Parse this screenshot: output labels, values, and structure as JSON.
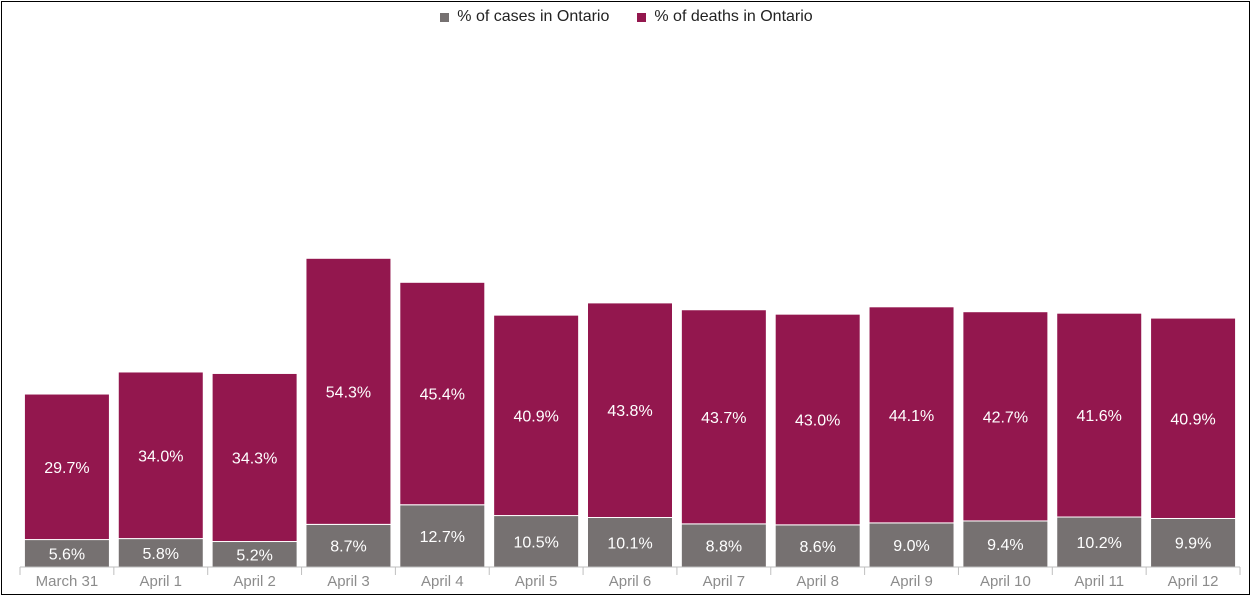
{
  "chart_data": {
    "type": "bar",
    "stacked": true,
    "categories": [
      "March 31",
      "April 1",
      "April 2",
      "April 3",
      "April 4",
      "April 5",
      "April 6",
      "April 7",
      "April 8",
      "April 9",
      "April 10",
      "April 11",
      "April 12"
    ],
    "series": [
      {
        "name": "% of cases in Ontario",
        "color": "#767171",
        "values": [
          5.6,
          5.8,
          5.2,
          8.7,
          12.7,
          10.5,
          10.1,
          8.8,
          8.6,
          9.0,
          9.4,
          10.2,
          9.9
        ],
        "labels": [
          "5.6%",
          "5.8%",
          "5.2%",
          "8.7%",
          "12.7%",
          "10.5%",
          "10.1%",
          "8.8%",
          "8.6%",
          "9.0%",
          "9.4%",
          "10.2%",
          "9.9%"
        ]
      },
      {
        "name": "% of deaths in Ontario",
        "color": "#93174E",
        "values": [
          29.7,
          34.0,
          34.3,
          54.3,
          45.4,
          40.9,
          43.8,
          43.7,
          43.0,
          44.1,
          42.7,
          41.6,
          40.9
        ],
        "labels": [
          "29.7%",
          "34.0%",
          "34.3%",
          "54.3%",
          "45.4%",
          "40.9%",
          "43.8%",
          "43.7%",
          "43.0%",
          "44.1%",
          "42.7%",
          "41.6%",
          "40.9%"
        ]
      }
    ],
    "legend_position": "top-center",
    "grid": false,
    "ylim": [
      0,
      100
    ]
  }
}
